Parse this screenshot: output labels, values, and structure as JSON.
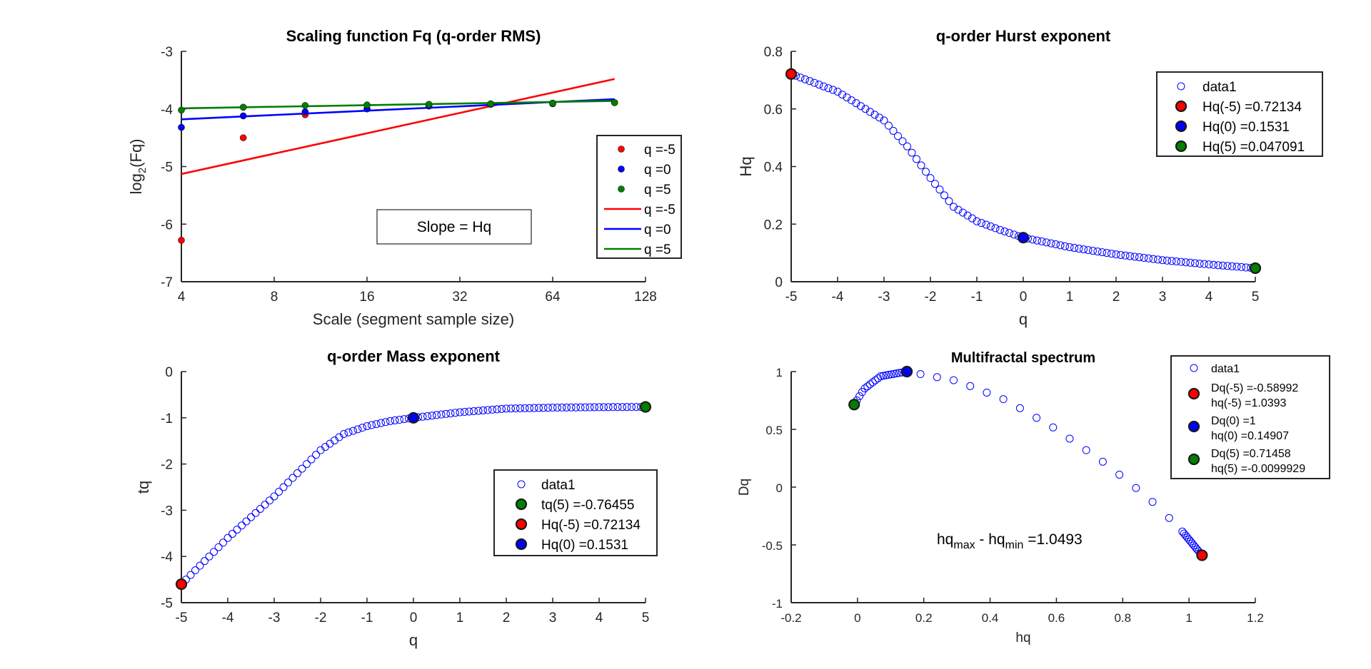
{
  "figure": {
    "background": "#ffffff"
  },
  "chart_data": [
    {
      "id": "p1",
      "type": "scatter+line",
      "title": "Scaling function Fq (q-order RMS)",
      "xlabel": "Scale (segment sample size)",
      "ylabel_base": "log",
      "ylabel_sub": "2",
      "ylabel_rest": "(Fq)",
      "xscale": "log2",
      "xlim": [
        4,
        128
      ],
      "ylim": [
        -7,
        -3
      ],
      "xticks": [
        4,
        8,
        16,
        32,
        64,
        128
      ],
      "xtick_labels": [
        "4",
        "8",
        "16",
        "32",
        "64",
        "128"
      ],
      "yticks": [
        -7,
        -6,
        -5,
        -4,
        -3
      ],
      "ytick_labels": [
        "-7",
        "-6",
        "-5",
        "-4",
        "-3"
      ],
      "scales": [
        4,
        6.35,
        10.08,
        16,
        25.4,
        40.3,
        64,
        101.6
      ],
      "series": [
        {
          "name": "q =-5",
          "kind": "points",
          "color": "#ff0000",
          "y": [
            -6.28,
            -4.5,
            -4.1,
            -4.0,
            -3.95,
            -3.92,
            -3.9,
            -3.89
          ]
        },
        {
          "name": "q =0",
          "kind": "points",
          "color": "#0000ff",
          "y": [
            -4.32,
            -4.12,
            -4.05,
            -4.0,
            -3.95,
            -3.92,
            -3.91,
            -3.89
          ]
        },
        {
          "name": "q =5",
          "kind": "points",
          "color": "#007f00",
          "y": [
            -4.02,
            -3.97,
            -3.94,
            -3.93,
            -3.92,
            -3.91,
            -3.9,
            -3.89
          ]
        },
        {
          "name": "q =-5",
          "kind": "line",
          "color": "#ff0000",
          "x": [
            4,
            101.6
          ],
          "y": [
            -5.13,
            -3.48
          ]
        },
        {
          "name": "q =0",
          "kind": "line",
          "color": "#0000ff",
          "x": [
            4,
            101.6
          ],
          "y": [
            -4.18,
            -3.83
          ]
        },
        {
          "name": "q =5",
          "kind": "line",
          "color": "#007f00",
          "x": [
            4,
            101.6
          ],
          "y": [
            -3.99,
            -3.86
          ]
        }
      ],
      "annotation": "Slope = Hq",
      "legend_position": "right"
    },
    {
      "id": "p2",
      "type": "scatter",
      "title": "q-order Hurst exponent",
      "xlabel": "q",
      "ylabel": "Hq",
      "xlim": [
        -5,
        5
      ],
      "ylim": [
        0,
        0.8
      ],
      "xticks": [
        -5,
        -4,
        -3,
        -2,
        -1,
        0,
        1,
        2,
        3,
        4,
        5
      ],
      "xtick_labels": [
        "-5",
        "-4",
        "-3",
        "-2",
        "-1",
        "0",
        "1",
        "2",
        "3",
        "4",
        "5"
      ],
      "yticks": [
        0,
        0.2,
        0.4,
        0.6,
        0.8
      ],
      "ytick_labels": [
        "0",
        "0.2",
        "0.4",
        "0.6",
        "0.8"
      ],
      "curve_knots": {
        "q": [
          -5,
          -4,
          -3,
          -2.5,
          -2,
          -1.5,
          -1,
          -0.5,
          0,
          1,
          2,
          3,
          4,
          5
        ],
        "Hq": [
          0.72134,
          0.66,
          0.56,
          0.47,
          0.36,
          0.26,
          0.21,
          0.18,
          0.1531,
          0.12,
          0.095,
          0.075,
          0.06,
          0.047091
        ]
      },
      "markers": [
        {
          "label": "Hq(-5) =0.72134",
          "x": -5,
          "y": 0.72134,
          "color": "#ff0000"
        },
        {
          "label": "Hq(0) =0.1531",
          "x": 0,
          "y": 0.1531,
          "color": "#0000ff"
        },
        {
          "label": "Hq(5) =0.047091",
          "x": 5,
          "y": 0.047091,
          "color": "#007f00"
        }
      ],
      "legend": [
        "data1",
        "Hq(-5) =0.72134",
        "Hq(0) =0.1531",
        "Hq(5) =0.047091"
      ],
      "legend_position": "top-right"
    },
    {
      "id": "p3",
      "type": "scatter",
      "title": "q-order Mass exponent",
      "xlabel": "q",
      "ylabel": "tq",
      "xlim": [
        -5,
        5
      ],
      "ylim": [
        -5,
        0
      ],
      "xticks": [
        -5,
        -4,
        -3,
        -2,
        -1,
        0,
        1,
        2,
        3,
        4,
        5
      ],
      "xtick_labels": [
        "-5",
        "-4",
        "-3",
        "-2",
        "-1",
        "0",
        "1",
        "2",
        "3",
        "4",
        "5"
      ],
      "yticks": [
        -5,
        -4,
        -3,
        -2,
        -1,
        0
      ],
      "ytick_labels": [
        "-5",
        "-4",
        "-3",
        "-2",
        "-1",
        "0"
      ],
      "curve_knots": {
        "q": [
          -5,
          -4,
          -3,
          -2.5,
          -2,
          -1.5,
          -1,
          -0.5,
          0,
          1,
          2,
          3,
          4,
          5
        ],
        "tq": [
          -4.6,
          -3.6,
          -2.7,
          -2.2,
          -1.7,
          -1.35,
          -1.18,
          -1.07,
          -1.0,
          -0.88,
          -0.8,
          -0.78,
          -0.77,
          -0.76455
        ]
      },
      "markers": [
        {
          "label": "tq(5) =-0.76455",
          "x": 5,
          "y": -0.76455,
          "color": "#007f00"
        },
        {
          "label": "Hq(-5) =0.72134",
          "x": -5,
          "y": -4.6,
          "color": "#ff0000"
        },
        {
          "label": "Hq(0) =0.1531",
          "x": 0,
          "y": -1.0,
          "color": "#0000ff"
        }
      ],
      "legend": [
        "data1",
        "tq(5) =-0.76455",
        "Hq(-5) =0.72134",
        "Hq(0) =0.1531"
      ],
      "legend_position": "right"
    },
    {
      "id": "p4",
      "type": "scatter",
      "title": "Multifractal spectrum",
      "xlabel": "hq",
      "ylabel": "Dq",
      "xlim": [
        -0.2,
        1.2
      ],
      "ylim": [
        -1,
        1
      ],
      "xticks": [
        -0.2,
        0,
        0.2,
        0.4,
        0.6,
        0.8,
        1,
        1.2
      ],
      "xtick_labels": [
        "-0.2",
        "0",
        "0.2",
        "0.4",
        "0.6",
        "0.8",
        "1",
        "1.2"
      ],
      "yticks": [
        -1,
        -0.5,
        0,
        0.5,
        1
      ],
      "ytick_labels": [
        "-1",
        "-0.5",
        "0",
        "0.5",
        "1"
      ],
      "curve_knots": {
        "hq": [
          -0.0099929,
          0.02,
          0.07,
          0.14907,
          0.3,
          0.45,
          0.6,
          0.75,
          0.88,
          0.97,
          1.0393
        ],
        "Dq": [
          0.71458,
          0.85,
          0.96,
          1.0,
          0.92,
          0.75,
          0.5,
          0.2,
          -0.1,
          -0.35,
          -0.58992
        ]
      },
      "markers": [
        {
          "label": "Dq(-5) =-0.58992",
          "label2": "hq(-5) =1.0393",
          "x": 1.0393,
          "y": -0.58992,
          "color": "#ff0000"
        },
        {
          "label": "Dq(0) =1",
          "label2": "hq(0) =0.14907",
          "x": 0.14907,
          "y": 1,
          "color": "#0000ff"
        },
        {
          "label": "Dq(5) =0.71458",
          "label2": "hq(5) =-0.0099929",
          "x": -0.0099929,
          "y": 0.71458,
          "color": "#007f00"
        }
      ],
      "legend": [
        "data1",
        "Dq(-5) =-0.58992",
        "hq(-5) =1.0393",
        "Dq(0) =1",
        "hq(0) =0.14907",
        "Dq(5) =0.71458",
        "hq(5) =-0.0099929"
      ],
      "annotation_parts": [
        "hq",
        "max",
        " - hq",
        "min",
        " =1.0493"
      ],
      "legend_position": "top-right"
    }
  ]
}
